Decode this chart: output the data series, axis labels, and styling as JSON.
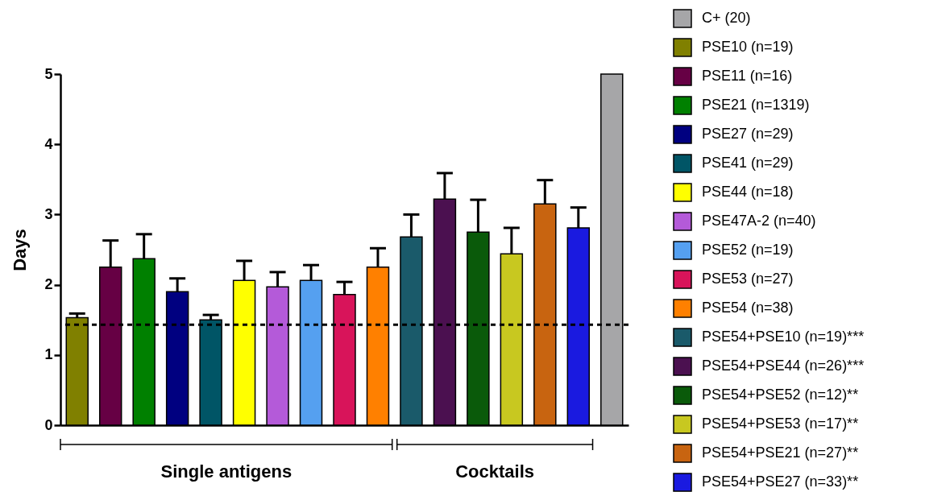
{
  "chart_data": {
    "type": "bar",
    "categories": [
      null,
      null,
      null,
      null,
      null,
      null,
      null,
      null,
      null,
      null,
      null,
      null,
      null,
      null,
      null,
      null,
      null
    ],
    "ylabel": "Days",
    "ylim": [
      0,
      5
    ],
    "yticks": [
      0,
      1,
      2,
      3,
      4,
      5
    ],
    "grid": false,
    "legend": "right",
    "series": [
      {
        "name": "C+ (20)",
        "color": "#a6a6a8",
        "values": [
          null,
          null,
          null,
          null,
          null,
          null,
          null,
          null,
          null,
          null,
          null,
          null,
          null,
          null,
          null,
          null,
          5
        ],
        "errors": [
          null,
          null,
          null,
          null,
          null,
          null,
          null,
          null,
          null,
          null,
          null,
          null,
          null,
          null,
          null,
          null,
          null
        ]
      },
      {
        "name": "PSE10 (n=19)",
        "color": "#808000",
        "values": [
          1.53,
          null,
          null,
          null,
          null,
          null,
          null,
          null,
          null,
          null,
          null,
          null,
          null,
          null,
          null,
          null,
          null
        ],
        "errors": [
          0.06,
          null,
          null,
          null,
          null,
          null,
          null,
          null,
          null,
          null,
          null,
          null,
          null,
          null,
          null,
          null,
          null
        ]
      },
      {
        "name": "PSE11 (n=16)",
        "color": "#660044",
        "values": [
          null,
          2.25,
          null,
          null,
          null,
          null,
          null,
          null,
          null,
          null,
          null,
          null,
          null,
          null,
          null,
          null,
          null
        ],
        "errors": [
          null,
          0.38,
          null,
          null,
          null,
          null,
          null,
          null,
          null,
          null,
          null,
          null,
          null,
          null,
          null,
          null,
          null
        ]
      },
      {
        "name": "PSE21 (n=1319)",
        "color": "#008000",
        "values": [
          null,
          null,
          2.37,
          null,
          null,
          null,
          null,
          null,
          null,
          null,
          null,
          null,
          null,
          null,
          null,
          null,
          null
        ],
        "errors": [
          null,
          null,
          0.35,
          null,
          null,
          null,
          null,
          null,
          null,
          null,
          null,
          null,
          null,
          null,
          null,
          null,
          null
        ]
      },
      {
        "name": "PSE27 (n=29)",
        "color": "#000080",
        "values": [
          null,
          null,
          null,
          1.9,
          null,
          null,
          null,
          null,
          null,
          null,
          null,
          null,
          null,
          null,
          null,
          null,
          null
        ],
        "errors": [
          null,
          null,
          null,
          0.19,
          null,
          null,
          null,
          null,
          null,
          null,
          null,
          null,
          null,
          null,
          null,
          null,
          null
        ]
      },
      {
        "name": "PSE41 (n=29)",
        "color": "#005566",
        "values": [
          null,
          null,
          null,
          null,
          1.5,
          null,
          null,
          null,
          null,
          null,
          null,
          null,
          null,
          null,
          null,
          null,
          null
        ],
        "errors": [
          null,
          null,
          null,
          null,
          0.07,
          null,
          null,
          null,
          null,
          null,
          null,
          null,
          null,
          null,
          null,
          null,
          null
        ]
      },
      {
        "name": "PSE44 (n=18)",
        "color": "#ffff00",
        "values": [
          null,
          null,
          null,
          null,
          null,
          2.06,
          null,
          null,
          null,
          null,
          null,
          null,
          null,
          null,
          null,
          null,
          null
        ],
        "errors": [
          null,
          null,
          null,
          null,
          null,
          0.28,
          null,
          null,
          null,
          null,
          null,
          null,
          null,
          null,
          null,
          null,
          null
        ]
      },
      {
        "name": "PSE47A-2 (n=40)",
        "color": "#b45ad9",
        "values": [
          null,
          null,
          null,
          null,
          null,
          null,
          1.97,
          null,
          null,
          null,
          null,
          null,
          null,
          null,
          null,
          null,
          null
        ],
        "errors": [
          null,
          null,
          null,
          null,
          null,
          null,
          0.21,
          null,
          null,
          null,
          null,
          null,
          null,
          null,
          null,
          null,
          null
        ]
      },
      {
        "name": "PSE52 (n=19)",
        "color": "#55a0f0",
        "values": [
          null,
          null,
          null,
          null,
          null,
          null,
          null,
          2.06,
          null,
          null,
          null,
          null,
          null,
          null,
          null,
          null,
          null
        ],
        "errors": [
          null,
          null,
          null,
          null,
          null,
          null,
          null,
          0.22,
          null,
          null,
          null,
          null,
          null,
          null,
          null,
          null,
          null
        ]
      },
      {
        "name": "PSE53 (n=27)",
        "color": "#d8145a",
        "values": [
          null,
          null,
          null,
          null,
          null,
          null,
          null,
          null,
          1.86,
          null,
          null,
          null,
          null,
          null,
          null,
          null,
          null
        ],
        "errors": [
          null,
          null,
          null,
          null,
          null,
          null,
          null,
          null,
          0.18,
          null,
          null,
          null,
          null,
          null,
          null,
          null,
          null
        ]
      },
      {
        "name": "PSE54 (n=38)",
        "color": "#ff8000",
        "values": [
          null,
          null,
          null,
          null,
          null,
          null,
          null,
          null,
          null,
          2.25,
          null,
          null,
          null,
          null,
          null,
          null,
          null
        ],
        "errors": [
          null,
          null,
          null,
          null,
          null,
          null,
          null,
          null,
          null,
          0.27,
          null,
          null,
          null,
          null,
          null,
          null,
          null
        ]
      },
      {
        "name": "PSE54+PSE10 (n=19)***",
        "color": "#1a5a6a",
        "values": [
          null,
          null,
          null,
          null,
          null,
          null,
          null,
          null,
          null,
          null,
          2.68,
          null,
          null,
          null,
          null,
          null,
          null
        ],
        "errors": [
          null,
          null,
          null,
          null,
          null,
          null,
          null,
          null,
          null,
          null,
          0.32,
          null,
          null,
          null,
          null,
          null,
          null
        ]
      },
      {
        "name": "PSE54+PSE44 (n=26)***",
        "color": "#4b1050",
        "values": [
          null,
          null,
          null,
          null,
          null,
          null,
          null,
          null,
          null,
          null,
          null,
          3.22,
          null,
          null,
          null,
          null,
          null
        ],
        "errors": [
          null,
          null,
          null,
          null,
          null,
          null,
          null,
          null,
          null,
          null,
          null,
          0.37,
          null,
          null,
          null,
          null,
          null
        ]
      },
      {
        "name": "PSE54+PSE52 (n=12)**",
        "color": "#0a5a0a",
        "values": [
          null,
          null,
          null,
          null,
          null,
          null,
          null,
          null,
          null,
          null,
          null,
          null,
          2.75,
          null,
          null,
          null,
          null
        ],
        "errors": [
          null,
          null,
          null,
          null,
          null,
          null,
          null,
          null,
          null,
          null,
          null,
          null,
          0.46,
          null,
          null,
          null,
          null
        ]
      },
      {
        "name": "PSE54+PSE53 (n=17)**",
        "color": "#c8c820",
        "values": [
          null,
          null,
          null,
          null,
          null,
          null,
          null,
          null,
          null,
          null,
          null,
          null,
          null,
          2.44,
          null,
          null,
          null
        ],
        "errors": [
          null,
          null,
          null,
          null,
          null,
          null,
          null,
          null,
          null,
          null,
          null,
          null,
          null,
          0.37,
          null,
          null,
          null
        ]
      },
      {
        "name": "PSE54+PSE21 (n=27)**",
        "color": "#c86410",
        "values": [
          null,
          null,
          null,
          null,
          null,
          null,
          null,
          null,
          null,
          null,
          null,
          null,
          null,
          null,
          3.15,
          null,
          null
        ],
        "errors": [
          null,
          null,
          null,
          null,
          null,
          null,
          null,
          null,
          null,
          null,
          null,
          null,
          null,
          null,
          0.34,
          null,
          null
        ]
      },
      {
        "name": "PSE54+PSE27 (n=33)**",
        "color": "#1a1ae0",
        "values": [
          null,
          null,
          null,
          null,
          null,
          null,
          null,
          null,
          null,
          null,
          null,
          null,
          null,
          null,
          null,
          2.81,
          null
        ],
        "errors": [
          null,
          null,
          null,
          null,
          null,
          null,
          null,
          null,
          null,
          null,
          null,
          null,
          null,
          null,
          null,
          0.29,
          null
        ]
      }
    ],
    "ref_lines": [
      {
        "axis": "y",
        "value": 1.43,
        "color": "#000000",
        "line_style": "dashed"
      }
    ],
    "annotations": [
      "Single antigens",
      "Cocktails"
    ]
  }
}
